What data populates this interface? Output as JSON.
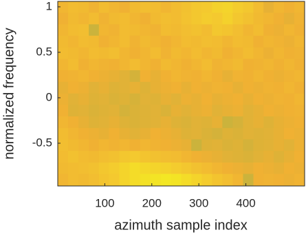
{
  "chart_data": {
    "type": "heatmap",
    "xlabel": "azimuth sample index",
    "ylabel": "normalized frequency",
    "x": [
      11,
      33,
      55,
      77,
      98,
      120,
      142,
      164,
      186,
      208,
      230,
      252,
      273,
      295,
      317,
      339,
      361,
      383,
      405,
      427,
      448,
      470,
      492,
      514
    ],
    "y": [
      1.0,
      0.87,
      0.745,
      0.62,
      0.49,
      0.365,
      0.24,
      0.11,
      -0.015,
      -0.14,
      -0.27,
      -0.395,
      -0.52,
      -0.65,
      -0.775,
      -0.9
    ],
    "z": [
      [
        0.55,
        0.6,
        0.58,
        0.52,
        0.6,
        0.55,
        0.5,
        0.58,
        0.62,
        0.6,
        0.55,
        0.6,
        0.65,
        0.7,
        0.72,
        0.78,
        0.8,
        0.75,
        0.7,
        0.6,
        0.45,
        0.55,
        0.5,
        0.55
      ],
      [
        0.5,
        0.58,
        0.55,
        0.6,
        0.52,
        0.58,
        0.6,
        0.55,
        0.5,
        0.58,
        0.62,
        0.6,
        0.66,
        0.7,
        0.75,
        0.72,
        0.78,
        0.7,
        0.65,
        0.58,
        0.55,
        0.5,
        0.45,
        0.52
      ],
      [
        0.55,
        0.6,
        0.62,
        0.3,
        0.55,
        0.52,
        0.6,
        0.58,
        0.55,
        0.52,
        0.6,
        0.58,
        0.62,
        0.65,
        0.6,
        0.7,
        0.68,
        0.62,
        0.55,
        0.6,
        0.5,
        0.48,
        0.55,
        0.5
      ],
      [
        0.58,
        0.55,
        0.6,
        0.58,
        0.5,
        0.55,
        0.6,
        0.52,
        0.58,
        0.55,
        0.5,
        0.55,
        0.6,
        0.58,
        0.62,
        0.6,
        0.55,
        0.6,
        0.58,
        0.5,
        0.55,
        0.52,
        0.48,
        0.55
      ],
      [
        0.6,
        0.58,
        0.55,
        0.6,
        0.58,
        0.62,
        0.55,
        0.5,
        0.55,
        0.6,
        0.52,
        0.58,
        0.55,
        0.6,
        0.55,
        0.58,
        0.5,
        0.55,
        0.6,
        0.55,
        0.48,
        0.55,
        0.5,
        0.52
      ],
      [
        0.55,
        0.6,
        0.5,
        0.55,
        0.52,
        0.5,
        0.55,
        0.6,
        0.55,
        0.5,
        0.58,
        0.55,
        0.5,
        0.55,
        0.6,
        0.52,
        0.55,
        0.58,
        0.5,
        0.52,
        0.55,
        0.5,
        0.55,
        0.5
      ],
      [
        0.5,
        0.52,
        0.55,
        0.5,
        0.48,
        0.45,
        0.42,
        0.35,
        0.5,
        0.45,
        0.5,
        0.55,
        0.52,
        0.5,
        0.55,
        0.5,
        0.45,
        0.52,
        0.5,
        0.55,
        0.5,
        0.48,
        0.52,
        0.55
      ],
      [
        0.45,
        0.5,
        0.48,
        0.42,
        0.45,
        0.4,
        0.42,
        0.45,
        0.4,
        0.45,
        0.48,
        0.5,
        0.45,
        0.5,
        0.48,
        0.52,
        0.5,
        0.45,
        0.5,
        0.48,
        0.52,
        0.5,
        0.55,
        0.5
      ],
      [
        0.48,
        0.42,
        0.45,
        0.4,
        0.42,
        0.38,
        0.4,
        0.36,
        0.42,
        0.4,
        0.45,
        0.42,
        0.48,
        0.45,
        0.5,
        0.45,
        0.48,
        0.5,
        0.45,
        0.5,
        0.48,
        0.52,
        0.5,
        0.55
      ],
      [
        0.5,
        0.4,
        0.42,
        0.38,
        0.4,
        0.42,
        0.35,
        0.38,
        0.4,
        0.42,
        0.38,
        0.45,
        0.42,
        0.45,
        0.48,
        0.42,
        0.45,
        0.48,
        0.42,
        0.45,
        0.5,
        0.48,
        0.5,
        0.52
      ],
      [
        0.55,
        0.5,
        0.45,
        0.4,
        0.42,
        0.45,
        0.4,
        0.38,
        0.4,
        0.42,
        0.45,
        0.4,
        0.38,
        0.42,
        0.4,
        0.45,
        0.3,
        0.35,
        0.42,
        0.45,
        0.4,
        0.45,
        0.48,
        0.5
      ],
      [
        0.6,
        0.55,
        0.5,
        0.48,
        0.45,
        0.5,
        0.45,
        0.42,
        0.45,
        0.5,
        0.48,
        0.45,
        0.4,
        0.42,
        0.38,
        0.35,
        0.4,
        0.38,
        0.42,
        0.4,
        0.42,
        0.45,
        0.5,
        0.48
      ],
      [
        0.62,
        0.58,
        0.55,
        0.5,
        0.55,
        0.52,
        0.55,
        0.5,
        0.55,
        0.52,
        0.5,
        0.48,
        0.45,
        0.3,
        0.4,
        0.42,
        0.38,
        0.4,
        0.35,
        0.4,
        0.42,
        0.45,
        0.42,
        0.48
      ],
      [
        0.6,
        0.65,
        0.6,
        0.58,
        0.62,
        0.65,
        0.7,
        0.72,
        0.68,
        0.65,
        0.62,
        0.6,
        0.55,
        0.5,
        0.48,
        0.45,
        0.42,
        0.4,
        0.38,
        0.42,
        0.45,
        0.4,
        0.45,
        0.5
      ],
      [
        0.58,
        0.6,
        0.62,
        0.65,
        0.7,
        0.75,
        0.8,
        0.85,
        0.82,
        0.8,
        0.78,
        0.75,
        0.7,
        0.65,
        0.6,
        0.55,
        0.5,
        0.48,
        0.45,
        0.5,
        0.48,
        0.45,
        0.5,
        0.48
      ],
      [
        0.55,
        0.6,
        0.58,
        0.62,
        0.68,
        0.72,
        0.8,
        0.85,
        0.88,
        0.9,
        0.92,
        0.9,
        0.85,
        0.8,
        0.75,
        0.68,
        0.62,
        0.55,
        0.3,
        0.5,
        0.52,
        0.5,
        0.48,
        0.52
      ]
    ],
    "zlim": [
      0,
      1
    ],
    "colormap": [
      "#4fb46a",
      "#c2b33e",
      "#f0b133",
      "#f4cc2e",
      "#f3f41f"
    ],
    "xlim": [
      0,
      525
    ],
    "ylim": [
      -0.97,
      1.06
    ],
    "xticks": [
      100,
      200,
      300,
      400
    ],
    "yticks": [
      -0.5,
      0,
      0.5,
      1
    ]
  }
}
